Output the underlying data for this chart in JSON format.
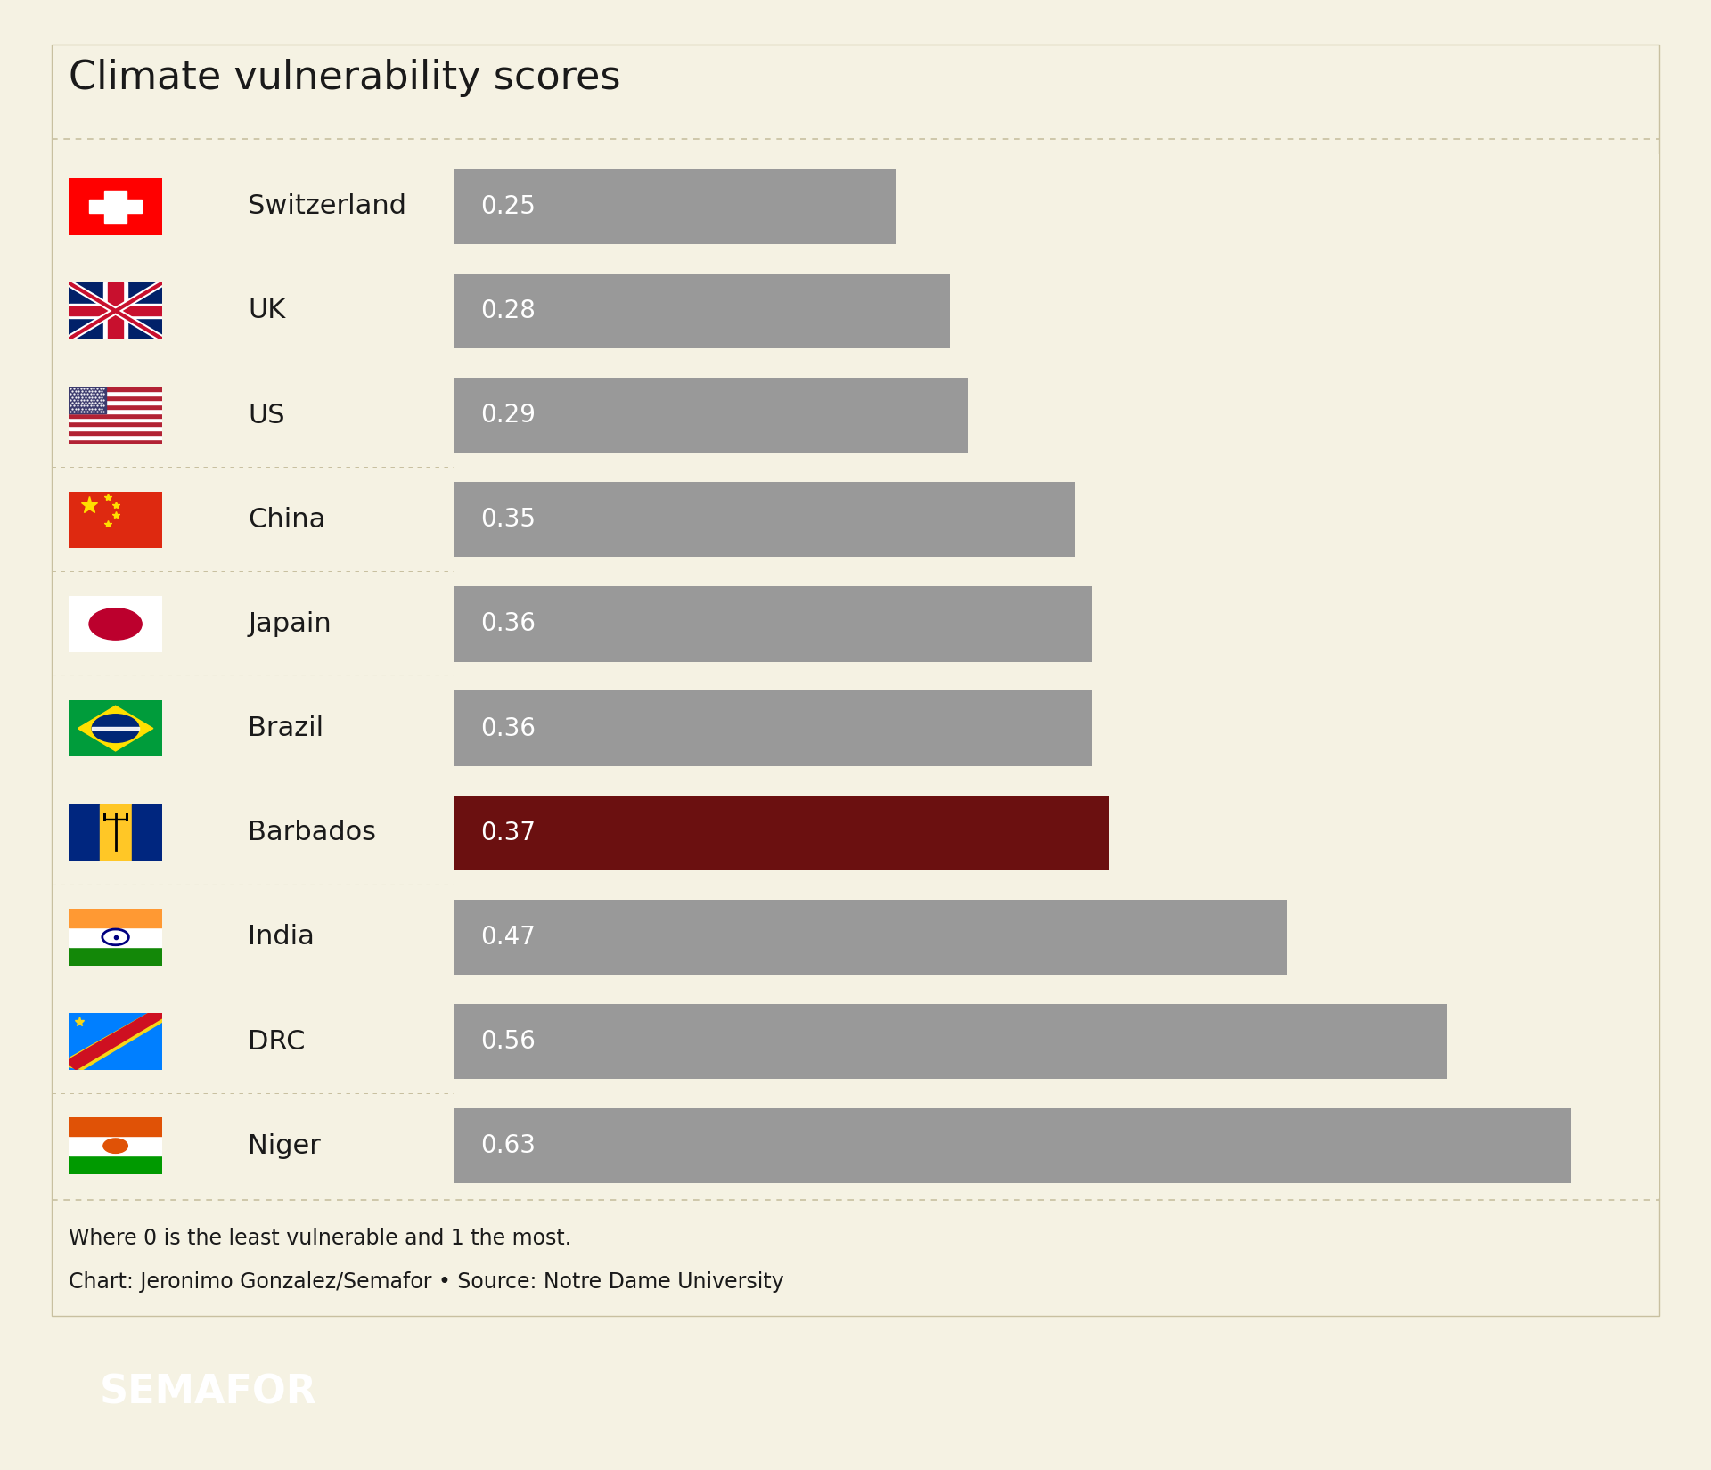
{
  "title": "Climate vulnerability scores",
  "countries": [
    "Switzerland",
    "UK",
    "US",
    "China",
    "Japain",
    "Brazil",
    "Barbados",
    "India",
    "DRC",
    "Niger"
  ],
  "values": [
    0.25,
    0.28,
    0.29,
    0.35,
    0.36,
    0.36,
    0.37,
    0.47,
    0.56,
    0.63
  ],
  "bar_colors": [
    "#999999",
    "#999999",
    "#999999",
    "#999999",
    "#999999",
    "#999999",
    "#6b1010",
    "#999999",
    "#999999",
    "#999999"
  ],
  "highlight_index": 6,
  "background_color": "#f5f2e3",
  "text_color": "#1a1a1a",
  "bar_text_color": "#ffffff",
  "bar_max": 0.68,
  "separator_color": "#c8c0a0",
  "footnote1": "Where 0 is the least vulnerable and 1 the most.",
  "footnote2": "Chart: Jeronimo Gonzalez/Semafor • Source: Notre Dame University",
  "footer_bg": "#000000",
  "footer_text": "SEMAFOR",
  "title_fontsize": 32,
  "country_fontsize": 22,
  "value_fontsize": 20,
  "footnote_fontsize": 17,
  "footer_fontsize": 32
}
